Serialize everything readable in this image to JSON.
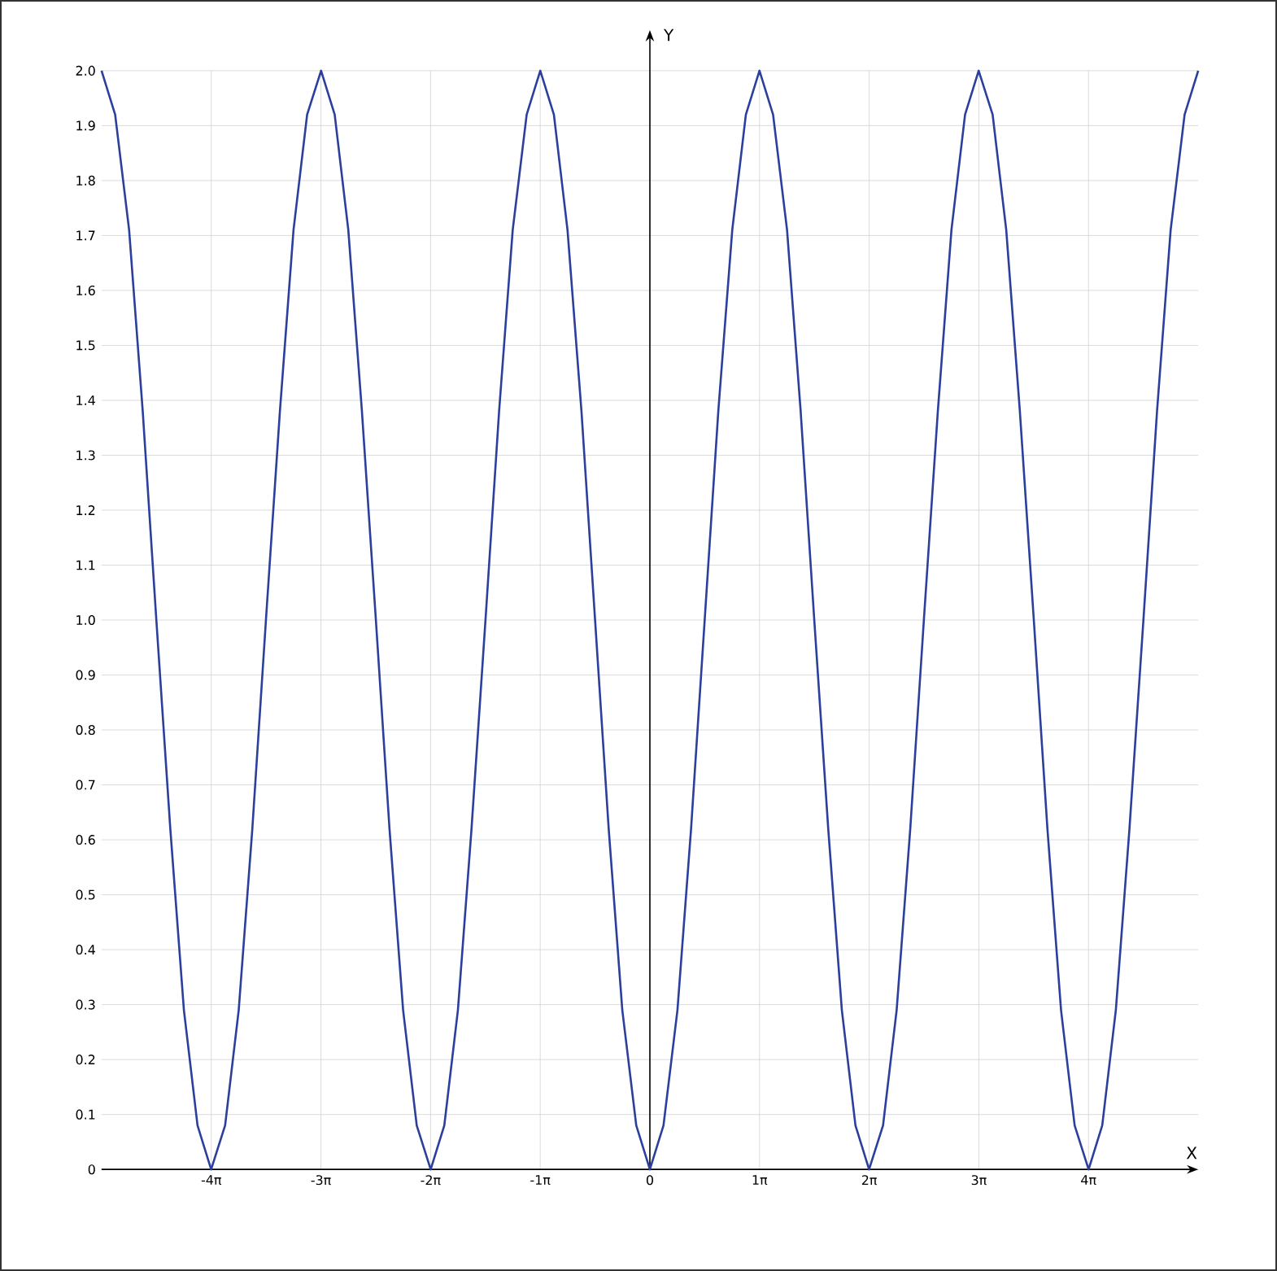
{
  "chart_data": {
    "type": "line",
    "xlabel": "X",
    "ylabel": "Y",
    "x": [
      -15.71,
      -15.32,
      -14.92,
      -14.53,
      -14.14,
      -13.74,
      -13.35,
      -12.96,
      -12.57,
      -12.17,
      -11.78,
      -11.39,
      -11.0,
      -10.6,
      -10.21,
      -9.82,
      -9.42,
      -9.03,
      -8.64,
      -8.25,
      -7.85,
      -7.46,
      -7.07,
      -6.68,
      -6.28,
      -5.89,
      -5.5,
      -5.11,
      -4.71,
      -4.32,
      -3.93,
      -3.53,
      -3.14,
      -2.75,
      -2.36,
      -1.96,
      -1.57,
      -1.18,
      -0.79,
      -0.39,
      0,
      0.39,
      0.79,
      1.18,
      1.57,
      1.96,
      2.36,
      2.75,
      3.14,
      3.53,
      3.93,
      4.32,
      4.71,
      5.11,
      5.5,
      5.89,
      6.28,
      6.68,
      7.07,
      7.46,
      7.85,
      8.25,
      8.64,
      9.03,
      9.42,
      9.82,
      10.21,
      10.6,
      11.0,
      11.39,
      11.78,
      12.17,
      12.57,
      12.96,
      13.35,
      13.74,
      14.14,
      14.53,
      14.92,
      15.32,
      15.71
    ],
    "series": [
      {
        "color": "#2b3f9c",
        "values": [
          2,
          1.92,
          1.71,
          1.38,
          1,
          0.62,
          0.29,
          0.08,
          0,
          0.08,
          0.29,
          0.62,
          1,
          1.38,
          1.71,
          1.92,
          2,
          1.92,
          1.71,
          1.38,
          1,
          0.62,
          0.29,
          0.08,
          0,
          0.08,
          0.29,
          0.62,
          1,
          1.38,
          1.71,
          1.92,
          2,
          1.92,
          1.71,
          1.38,
          1,
          0.62,
          0.29,
          0.08,
          0,
          0.08,
          0.29,
          0.62,
          1,
          1.38,
          1.71,
          1.92,
          2,
          1.92,
          1.71,
          1.38,
          1,
          0.62,
          0.29,
          0.08,
          0,
          0.08,
          0.29,
          0.62,
          1,
          1.38,
          1.71,
          1.92,
          2,
          1.92,
          1.71,
          1.38,
          1,
          0.62,
          0.29,
          0.08,
          0,
          0.08,
          0.29,
          0.62,
          1,
          1.38,
          1.71,
          1.92,
          2
        ]
      }
    ],
    "xlim": [
      -15.71,
      15.71
    ],
    "ylim": [
      0,
      2
    ],
    "xticks": [
      {
        "value": -12.566,
        "label": "-4π"
      },
      {
        "value": -9.425,
        "label": "-3π"
      },
      {
        "value": -6.283,
        "label": "-2π"
      },
      {
        "value": -3.142,
        "label": "-1π"
      },
      0,
      {
        "value": 3.142,
        "label": "1π"
      },
      {
        "value": 6.283,
        "label": "2π"
      },
      {
        "value": 9.425,
        "label": "3π"
      },
      {
        "value": 12.566,
        "label": "4π"
      }
    ],
    "yticks": [
      0,
      0.1,
      0.2,
      0.3,
      0.4,
      0.5,
      0.6,
      0.7,
      0.8,
      0.9,
      {
        "value": 1,
        "label": "1.0"
      },
      1.1,
      1.2,
      1.3,
      1.4,
      1.5,
      1.6,
      1.7,
      1.8,
      1.9,
      {
        "value": 2,
        "label": "2.0"
      }
    ],
    "grid": true,
    "marker": "none",
    "line_style": "solid"
  }
}
